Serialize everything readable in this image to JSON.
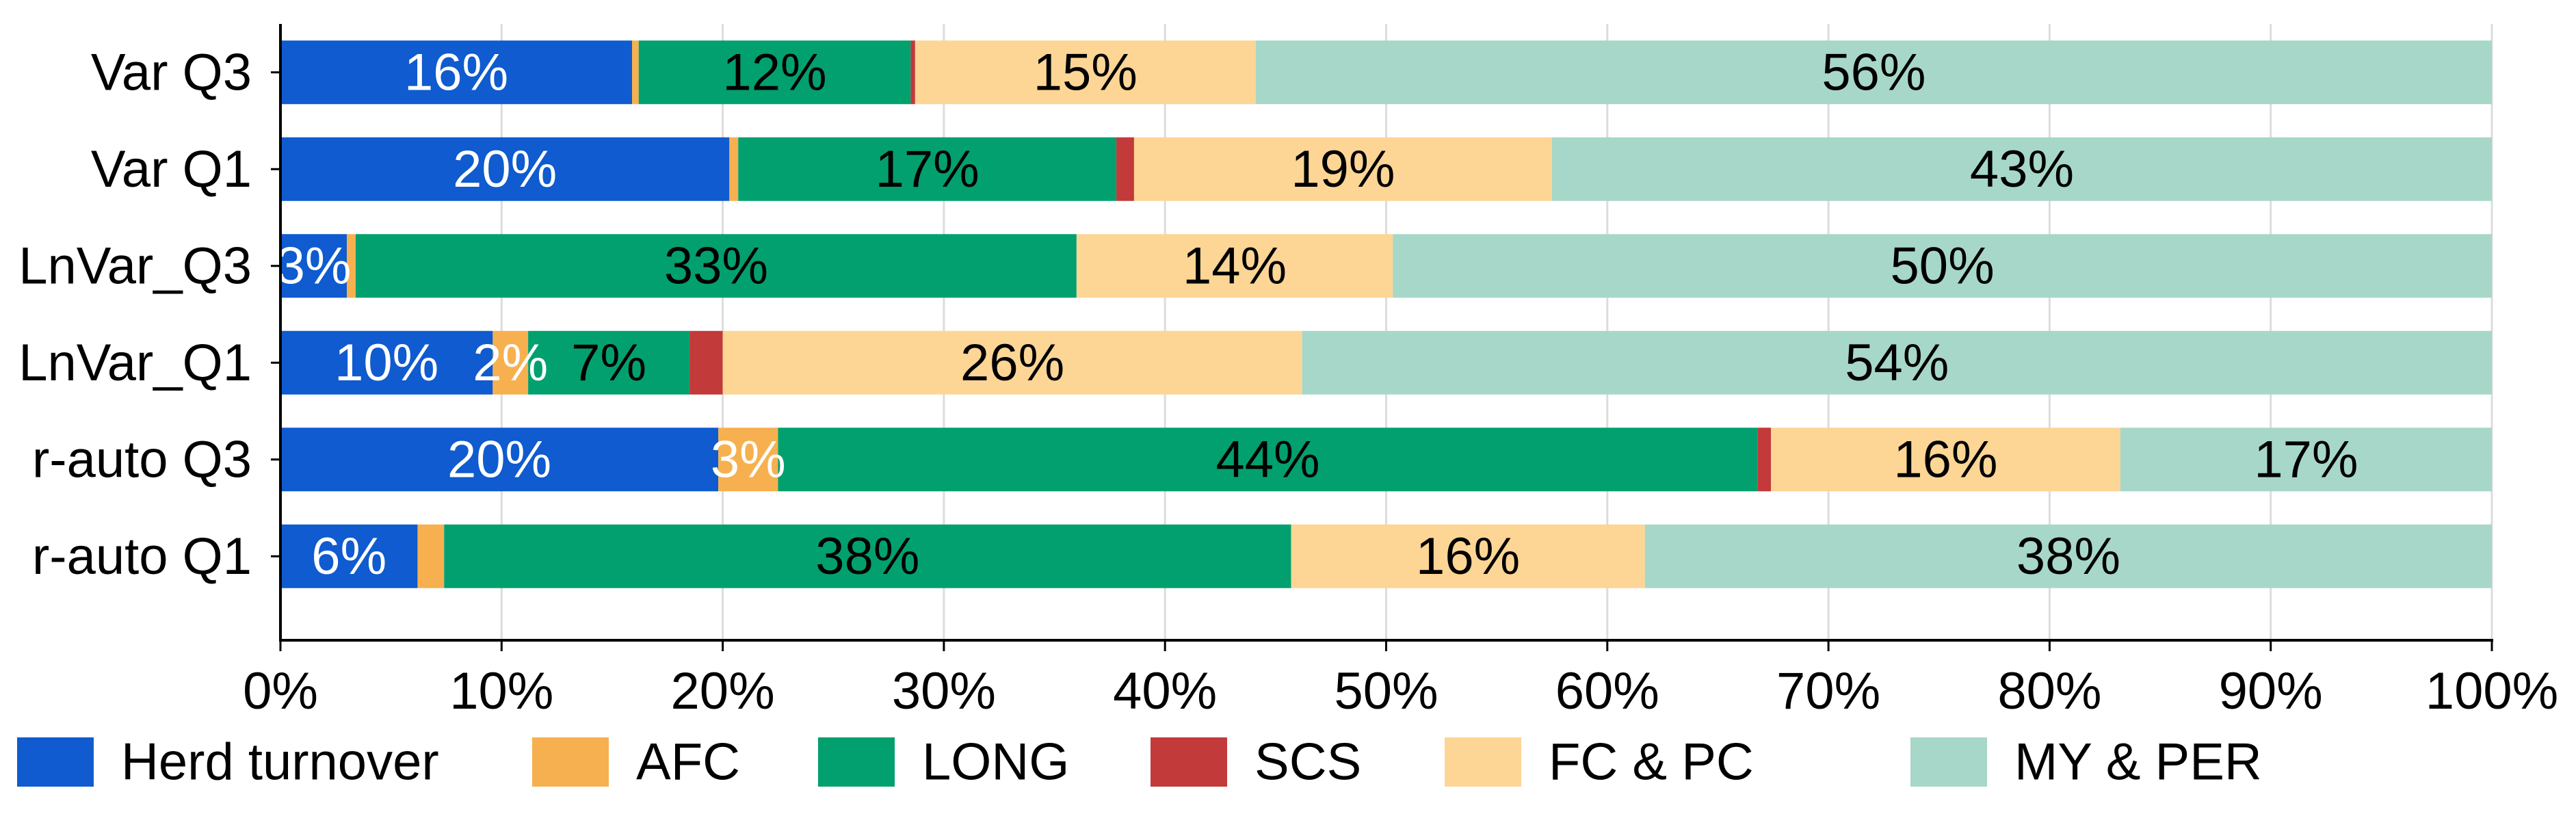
{
  "chart_data": {
    "type": "bar",
    "orientation": "horizontal",
    "stacked": true,
    "title": "",
    "xlabel": "",
    "ylabel": "",
    "xlim": [
      0,
      100
    ],
    "x_ticks": [
      "0%",
      "10%",
      "20%",
      "30%",
      "40%",
      "50%",
      "60%",
      "70%",
      "80%",
      "90%",
      "100%"
    ],
    "grid": "vertical",
    "legend_position": "bottom",
    "categories": [
      "Var Q3",
      "Var Q1",
      "LnVar_Q3",
      "LnVar_Q1",
      "r-auto Q3",
      "r-auto Q1"
    ],
    "series": [
      {
        "name": "Herd turnover",
        "color": "#0f5bcf",
        "label_color": "#ffffff",
        "values": [
          15.9,
          20.3,
          3.0,
          9.6,
          19.8,
          6.2
        ],
        "labels": [
          "16%",
          "20%",
          "3%",
          "10%",
          "20%",
          "6%"
        ]
      },
      {
        "name": "AFC",
        "color": "#f7b04f",
        "label_color": "#ffffff",
        "values": [
          0.3,
          0.4,
          0.4,
          1.6,
          2.7,
          1.2
        ],
        "labels": [
          "",
          "",
          "",
          "2%",
          "3%",
          ""
        ]
      },
      {
        "name": "LONG",
        "color": "#02a06e",
        "label_color": "#000000",
        "values": [
          12.3,
          17.1,
          32.6,
          7.3,
          44.3,
          38.3
        ],
        "labels": [
          "12%",
          "17%",
          "33%",
          "7%",
          "44%",
          "38%"
        ]
      },
      {
        "name": "SCS",
        "color": "#c23a3a",
        "label_color": "#000000",
        "values": [
          0.2,
          0.8,
          0.0,
          1.5,
          0.6,
          0.0
        ],
        "labels": [
          "",
          "",
          "",
          "",
          "",
          ""
        ]
      },
      {
        "name": "FC & PC",
        "color": "#fdd595",
        "label_color": "#000000",
        "values": [
          15.4,
          18.9,
          14.3,
          26.2,
          15.8,
          16.0
        ],
        "labels": [
          "15%",
          "19%",
          "14%",
          "26%",
          "16%",
          "16%"
        ]
      },
      {
        "name": "MY & PER",
        "color": "#a7d7c8",
        "label_color": "#000000",
        "values": [
          55.9,
          42.5,
          49.7,
          53.8,
          16.8,
          38.3
        ],
        "labels": [
          "56%",
          "43%",
          "50%",
          "54%",
          "17%",
          "38%"
        ]
      }
    ]
  }
}
